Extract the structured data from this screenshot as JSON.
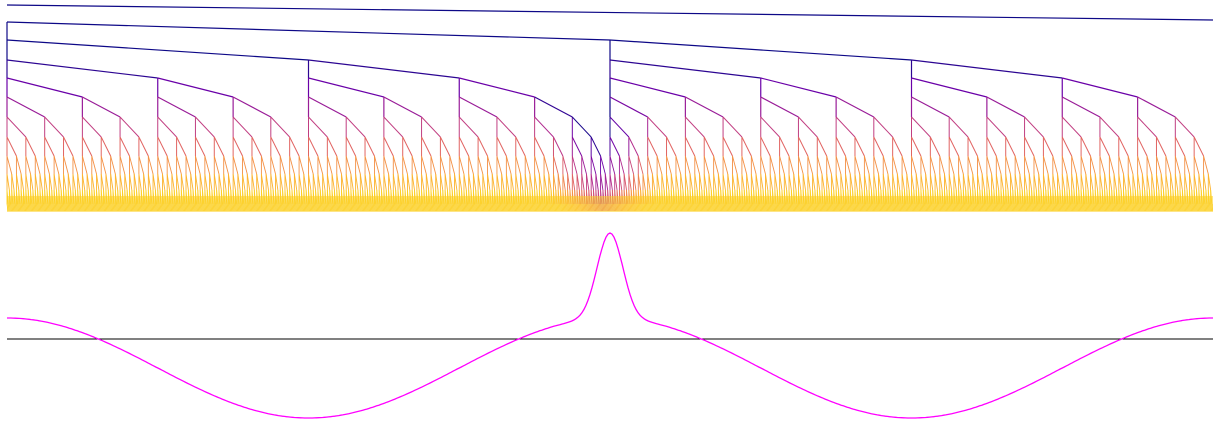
{
  "figure": {
    "tree": {
      "levels": 11,
      "palette": [
        "#0d0887",
        "#6a00a8",
        "#b12a90",
        "#e16462",
        "#fca636",
        "#fccf25"
      ]
    },
    "curve": {
      "color": "#ff00ff",
      "baseline_color": "#000000",
      "peak_position": 0.5,
      "minima_positions": [
        0.25,
        0.75
      ]
    }
  }
}
